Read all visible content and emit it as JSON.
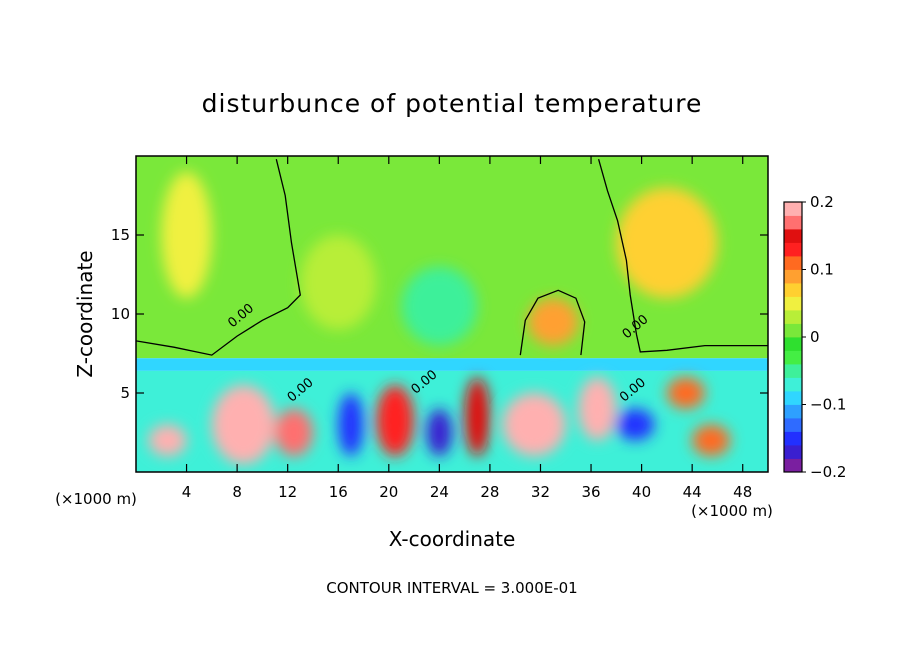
{
  "chart_data": {
    "type": "heatmap",
    "title": "disturbunce of potential temperature",
    "xlabel": "X-coordinate",
    "ylabel": "Z-coordinate",
    "x_unit_label": "(×1000 m)",
    "x_unit_label_right": "(×1000 m)",
    "footer": "CONTOUR INTERVAL = 3.000E-01",
    "xlim": [
      0,
      50
    ],
    "ylim": [
      0,
      20
    ],
    "x_ticks": [
      4,
      8,
      12,
      16,
      20,
      24,
      28,
      32,
      36,
      40,
      44,
      48
    ],
    "x_tick_labels": [
      "4",
      "8",
      "12",
      "16",
      "20",
      "24",
      "28",
      "32",
      "36",
      "40",
      "44",
      "48"
    ],
    "y_ticks": [
      5,
      10,
      15
    ],
    "y_tick_labels": [
      "5",
      "10",
      "15"
    ],
    "colorbar": {
      "range": [
        -0.2,
        0.2
      ],
      "tick_values": [
        0.2,
        0.1,
        0,
        -0.1,
        -0.2
      ],
      "tick_labels": [
        "0.2",
        "0.1",
        "0",
        "−0.1",
        "−0.2"
      ],
      "colors": [
        "#7a1fa0",
        "#3a1fd0",
        "#2230ff",
        "#2f6bff",
        "#2ea0ff",
        "#30d6ff",
        "#3ef0d8",
        "#3ef09a",
        "#44ee44",
        "#2fe02f",
        "#7ae83a",
        "#b8ee38",
        "#f0f040",
        "#ffd030",
        "#ffa030",
        "#ff6a20",
        "#ff2020",
        "#e01010",
        "#ff7070",
        "#ffb0b0"
      ]
    },
    "contour_labels": [
      {
        "text": "0.00",
        "x": 8.5,
        "y": 9.7
      },
      {
        "text": "0.00",
        "x": 13.2,
        "y": 5.0
      },
      {
        "text": "0.00",
        "x": 23.0,
        "y": 5.5
      },
      {
        "text": "0.00",
        "x": 39.7,
        "y": 9.0
      },
      {
        "text": "0.00",
        "x": 39.5,
        "y": 5.0
      }
    ],
    "zero_contour_top": [
      [
        0,
        8.3
      ],
      [
        3,
        7.9
      ],
      [
        6,
        7.4
      ],
      [
        8,
        8.6
      ],
      [
        10,
        9.6
      ],
      [
        12,
        10.4
      ],
      [
        13,
        11.2
      ],
      [
        12.3,
        14.5
      ],
      [
        11.8,
        17.5
      ],
      [
        11.1,
        19.8
      ]
    ],
    "zero_contour_right": [
      [
        36.6,
        19.8
      ],
      [
        37.3,
        17.8
      ],
      [
        38.1,
        15.9
      ],
      [
        38.8,
        13.4
      ],
      [
        39.1,
        11.2
      ],
      [
        39.6,
        8.7
      ],
      [
        39.9,
        7.6
      ],
      [
        42,
        7.7
      ],
      [
        45,
        8.0
      ],
      [
        50,
        8.0
      ]
    ],
    "zero_contour_bubble": [
      [
        30.4,
        7.4
      ],
      [
        30.8,
        9.6
      ],
      [
        31.8,
        11.0
      ],
      [
        33.4,
        11.5
      ],
      [
        34.8,
        11.0
      ],
      [
        35.5,
        9.5
      ],
      [
        35.2,
        7.4
      ]
    ],
    "regions": [
      {
        "x0": 0,
        "x1": 50,
        "y0": 7.2,
        "y1": 20,
        "value": 0.02
      },
      {
        "x0": 2,
        "x1": 6,
        "y0": 11,
        "y1": 19,
        "value": 0.05
      },
      {
        "x0": 13,
        "x1": 19,
        "y0": 9,
        "y1": 15,
        "value": 0.035
      },
      {
        "x0": 21,
        "x1": 27,
        "y0": 8,
        "y1": 13,
        "value": -0.04
      },
      {
        "x0": 31,
        "x1": 35,
        "y0": 8,
        "y1": 11,
        "value": 0.08
      },
      {
        "x0": 38,
        "x1": 46,
        "y0": 11,
        "y1": 18,
        "value": 0.06
      },
      {
        "x0": 0,
        "x1": 50,
        "y0": 6.4,
        "y1": 7.2,
        "value": -0.09
      },
      {
        "x0": 0,
        "x1": 50,
        "y0": 0,
        "y1": 6.4,
        "value": -0.07
      },
      {
        "x0": 1,
        "x1": 4,
        "y0": 1,
        "y1": 3,
        "value": 0.19
      },
      {
        "x0": 6,
        "x1": 11,
        "y0": 0.5,
        "y1": 5.5,
        "value": 0.2
      },
      {
        "x0": 11,
        "x1": 14,
        "y0": 1,
        "y1": 4,
        "value": 0.16
      },
      {
        "x0": 19,
        "x1": 22,
        "y0": 1,
        "y1": 5.5,
        "value": 0.13
      },
      {
        "x0": 26,
        "x1": 28,
        "y0": 1,
        "y1": 6,
        "value": 0.14
      },
      {
        "x0": 29,
        "x1": 34,
        "y0": 1,
        "y1": 5,
        "value": 0.2
      },
      {
        "x0": 35,
        "x1": 38,
        "y0": 2,
        "y1": 6,
        "value": 0.2
      },
      {
        "x0": 42,
        "x1": 45,
        "y0": 4,
        "y1": 6,
        "value": 0.12
      },
      {
        "x0": 44,
        "x1": 47,
        "y0": 1,
        "y1": 3,
        "value": 0.11
      },
      {
        "x0": 16,
        "x1": 18,
        "y0": 1,
        "y1": 5,
        "value": -0.16
      },
      {
        "x0": 23,
        "x1": 25,
        "y0": 1,
        "y1": 4,
        "value": -0.17
      },
      {
        "x0": 38,
        "x1": 41,
        "y0": 2,
        "y1": 4,
        "value": -0.15
      }
    ]
  }
}
